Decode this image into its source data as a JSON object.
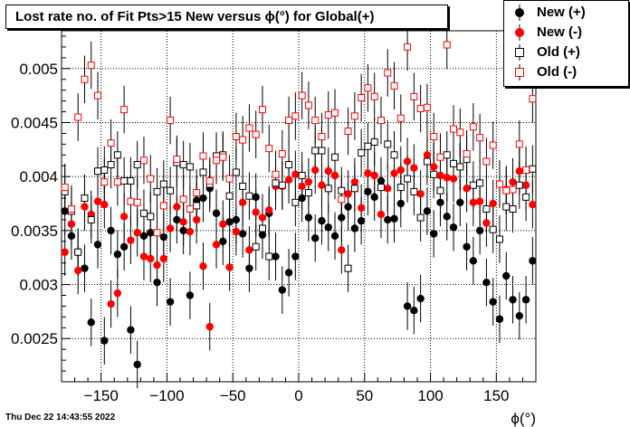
{
  "title": "Lost rate no. of Fit Pts>15 New versus ϕ(°) for Global(+)",
  "timestamp": "Thu Dec 22 14:43:55 2022",
  "chart_data": {
    "type": "scatter",
    "xlabel": "ϕ(°)",
    "ylabel": "",
    "xlim": [
      -180,
      180
    ],
    "ylim": [
      0.0021,
      0.00535
    ],
    "x_ticks": [
      -150,
      -100,
      -50,
      0,
      50,
      100,
      150
    ],
    "x_tick_labels": [
      "−150",
      "−100",
      "−50",
      "0",
      "50",
      "100",
      "150"
    ],
    "y_ticks": [
      0.0025,
      0.003,
      0.0035,
      0.004,
      0.0045,
      0.005
    ],
    "y_tick_labels": [
      "0.0025",
      "0.003",
      "0.0035",
      "0.004",
      "0.0045",
      "0.005"
    ],
    "grid": true,
    "legend_position": "top-right",
    "error_bar": 0.00022,
    "x": [
      -177.5,
      -172.5,
      -167.5,
      -162.5,
      -157.5,
      -152.5,
      -147.5,
      -142.5,
      -137.5,
      -132.5,
      -127.5,
      -122.5,
      -117.5,
      -112.5,
      -107.5,
      -102.5,
      -97.5,
      -92.5,
      -87.5,
      -82.5,
      -77.5,
      -72.5,
      -67.5,
      -62.5,
      -57.5,
      -52.5,
      -47.5,
      -42.5,
      -37.5,
      -32.5,
      -27.5,
      -22.5,
      -17.5,
      -12.5,
      -7.5,
      -2.5,
      2.5,
      7.5,
      12.5,
      17.5,
      22.5,
      27.5,
      32.5,
      37.5,
      42.5,
      47.5,
      52.5,
      57.5,
      62.5,
      67.5,
      72.5,
      77.5,
      82.5,
      87.5,
      92.5,
      97.5,
      102.5,
      107.5,
      112.5,
      117.5,
      122.5,
      127.5,
      132.5,
      137.5,
      142.5,
      147.5,
      152.5,
      157.5,
      162.5,
      167.5,
      172.5,
      177.5
    ],
    "series": [
      {
        "name": "New (+)",
        "marker": "circle-filled",
        "color": "#000000",
        "values": [
          0.00368,
          0.00345,
          0.0033,
          0.00315,
          0.00265,
          0.00337,
          0.00248,
          0.0035,
          0.00328,
          0.00335,
          0.00258,
          0.00226,
          0.00345,
          0.00348,
          0.00302,
          0.00344,
          0.00284,
          0.0036,
          0.0035,
          0.0029,
          0.00378,
          0.0038,
          0.00389,
          0.00366,
          0.0034,
          0.00358,
          0.0036,
          0.00347,
          0.00315,
          0.00381,
          0.00346,
          0.00366,
          0.00326,
          0.00295,
          0.00311,
          0.00326,
          0.0038,
          0.00362,
          0.00343,
          0.00359,
          0.00353,
          0.00345,
          0.00362,
          0.00372,
          0.00352,
          0.00359,
          0.00386,
          0.00381,
          0.00396,
          0.0036,
          0.00361,
          0.00375,
          0.0028,
          0.00276,
          0.00287,
          0.00368,
          0.00347,
          0.00376,
          0.00363,
          0.00353,
          0.00376,
          0.00335,
          0.00322,
          0.0035,
          0.00302,
          0.00284,
          0.00268,
          0.00308,
          0.00286,
          0.00271,
          0.00286,
          0.00322
        ]
      },
      {
        "name": "New (-)",
        "marker": "circle-filled",
        "color": "#ff0000",
        "values": [
          0.0033,
          0.00356,
          0.00313,
          0.00372,
          0.00365,
          0.00377,
          0.00374,
          0.00282,
          0.00292,
          0.00363,
          0.00341,
          0.00348,
          0.00326,
          0.00324,
          0.00318,
          0.00324,
          0.00352,
          0.00372,
          0.00358,
          0.00349,
          0.0036,
          0.00317,
          0.00261,
          0.00337,
          0.00356,
          0.00316,
          0.00349,
          0.00376,
          0.00332,
          0.00367,
          0.00362,
          0.00369,
          0.00391,
          0.00391,
          0.00397,
          0.00402,
          0.00391,
          0.00395,
          0.00406,
          0.00392,
          0.00405,
          0.00401,
          0.00332,
          0.00384,
          0.00395,
          0.00371,
          0.00403,
          0.00401,
          0.00365,
          0.00389,
          0.00403,
          0.00406,
          0.00414,
          0.00408,
          0.00384,
          0.0042,
          0.00409,
          0.00401,
          0.00399,
          0.00398,
          0.00409,
          0.00389,
          0.00376,
          0.00377,
          0.00357,
          0.00375,
          0.00393,
          0.00388,
          0.00395,
          0.00405,
          0.00392,
          0.00374
        ]
      },
      {
        "name": "Old (+)",
        "marker": "square-open",
        "color": "#000000",
        "values": [
          0.00386,
          0.00368,
          0.0033,
          0.0038,
          0.0036,
          0.00405,
          0.00406,
          0.00411,
          0.0042,
          0.00396,
          0.00396,
          0.00411,
          0.00366,
          0.00363,
          0.00386,
          0.00393,
          0.00387,
          0.00413,
          0.00411,
          0.00409,
          0.00373,
          0.00404,
          0.00393,
          0.00419,
          0.0042,
          0.00382,
          0.00404,
          0.00391,
          0.00382,
          0.00335,
          0.00352,
          0.00326,
          0.00394,
          0.00392,
          0.00411,
          0.00376,
          0.00401,
          0.00385,
          0.00424,
          0.00424,
          0.00389,
          0.00418,
          0.00387,
          0.00315,
          0.00389,
          0.00422,
          0.00428,
          0.00432,
          0.0039,
          0.0043,
          0.0042,
          0.0039,
          0.00398,
          0.00386,
          0.00362,
          0.00414,
          0.00402,
          0.00387,
          0.0042,
          0.00412,
          0.00409,
          0.00416,
          0.00392,
          0.00394,
          0.0037,
          0.00351,
          0.00342,
          0.00372,
          0.0037,
          0.00392,
          0.00381,
          0.00407
        ]
      },
      {
        "name": "Old (-)",
        "marker": "square-open",
        "color": "#ff0000",
        "values": [
          0.0039,
          0.0037,
          0.00455,
          0.0049,
          0.00503,
          0.00475,
          0.00395,
          0.00431,
          0.00395,
          0.00462,
          0.00377,
          0.00376,
          0.00415,
          0.00398,
          0.00348,
          0.00373,
          0.00452,
          0.00416,
          0.00379,
          0.0037,
          0.00385,
          0.00419,
          0.00396,
          0.00415,
          0.00418,
          0.00398,
          0.00437,
          0.00434,
          0.00445,
          0.00439,
          0.00462,
          0.00426,
          0.00402,
          0.00421,
          0.00452,
          0.00456,
          0.00475,
          0.00466,
          0.00452,
          0.00437,
          0.00457,
          0.00459,
          0.00379,
          0.00442,
          0.00456,
          0.00473,
          0.00482,
          0.00474,
          0.00452,
          0.00496,
          0.00484,
          0.00454,
          0.0052,
          0.00474,
          0.00463,
          0.00464,
          0.00437,
          0.00418,
          0.00522,
          0.00444,
          0.00441,
          0.00421,
          0.00446,
          0.00436,
          0.00414,
          0.00429,
          0.00393,
          0.00387,
          0.00388,
          0.0043,
          0.00406,
          0.00472
        ]
      }
    ]
  }
}
